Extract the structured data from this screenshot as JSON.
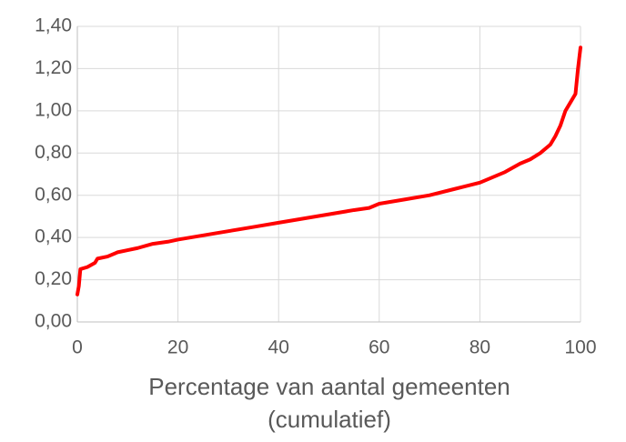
{
  "chart_data": {
    "type": "line",
    "xlabel": [
      "Percentage van aantal gemeenten",
      "(cumulatief)"
    ],
    "x": [
      0,
      0.3,
      0.6,
      2,
      3.5,
      4,
      6,
      8,
      10,
      12,
      15,
      18,
      20,
      25,
      30,
      35,
      40,
      45,
      50,
      55,
      58,
      60,
      65,
      70,
      75,
      80,
      85,
      88,
      90,
      92,
      94,
      95,
      96,
      97,
      98,
      99,
      99.5,
      100
    ],
    "series": [
      {
        "color": "#ff0000",
        "values": [
          0.13,
          0.17,
          0.25,
          0.26,
          0.28,
          0.3,
          0.31,
          0.33,
          0.34,
          0.35,
          0.37,
          0.38,
          0.39,
          0.41,
          0.43,
          0.45,
          0.47,
          0.49,
          0.51,
          0.53,
          0.54,
          0.56,
          0.58,
          0.6,
          0.63,
          0.66,
          0.71,
          0.75,
          0.77,
          0.8,
          0.84,
          0.88,
          0.93,
          1.0,
          1.04,
          1.08,
          1.2,
          1.3
        ]
      }
    ],
    "xlim": [
      0,
      100
    ],
    "xticks": [
      0,
      20,
      40,
      60,
      80,
      100
    ],
    "ylim": [
      0,
      1.4
    ],
    "yticks": [
      {
        "value": 0,
        "label": "0,00"
      },
      {
        "value": 0.2,
        "label": "0,20"
      },
      {
        "value": 0.4,
        "label": "0,40"
      },
      {
        "value": 0.6,
        "label": "0,60"
      },
      {
        "value": 0.8,
        "label": "0,80"
      },
      {
        "value": 1.0,
        "label": "1,00"
      },
      {
        "value": 1.2,
        "label": "1,20"
      },
      {
        "value": 1.4,
        "label": "1,40"
      }
    ],
    "grid": true
  }
}
